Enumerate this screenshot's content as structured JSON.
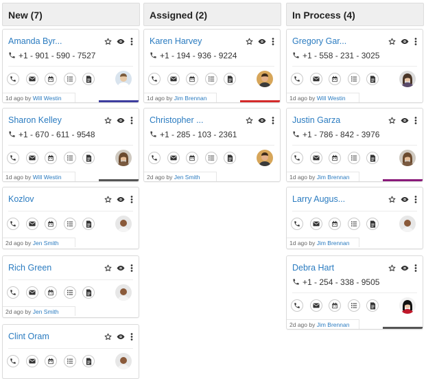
{
  "columns": [
    {
      "title": "New (7)",
      "cards": [
        {
          "name": "Amanda Byr...",
          "phone": "+1 - 901 - 590 - 7527",
          "meta_ago": "1d ago by",
          "meta_user": "Will Westin",
          "accent": "#3d3d9e",
          "avatar": "man-light"
        },
        {
          "name": "Sharon Kelley",
          "phone": "+1 - 670 - 611 - 9548",
          "meta_ago": "1d ago by",
          "meta_user": "Will Westin",
          "accent": "#555555",
          "avatar": "woman-curly"
        },
        {
          "name": "Kozlov",
          "phone": "",
          "meta_ago": "2d ago by",
          "meta_user": "Jen Smith",
          "accent": "",
          "avatar": "man-bald"
        },
        {
          "name": "Rich Green",
          "phone": "",
          "meta_ago": "2d ago by",
          "meta_user": "Jen Smith",
          "accent": "",
          "avatar": "man-bald"
        },
        {
          "name": "Clint Oram",
          "phone": "",
          "meta_ago": "",
          "meta_user": "",
          "accent": "",
          "avatar": "man-bald"
        }
      ]
    },
    {
      "title": "Assigned (2)",
      "cards": [
        {
          "name": "Karen Harvey",
          "phone": "+1 - 194 - 936 - 9224",
          "meta_ago": "1d ago by",
          "meta_user": "Jim Brennan",
          "accent": "#d42a2a",
          "avatar": "man-orange"
        },
        {
          "name": "Christopher ...",
          "phone": "+1 - 285 - 103 - 2361",
          "meta_ago": "2d ago by",
          "meta_user": "Jen Smith",
          "accent": "",
          "avatar": "man-orange"
        }
      ]
    },
    {
      "title": "In Process (4)",
      "cards": [
        {
          "name": "Gregory Gar...",
          "phone": "+1 - 558 - 231 - 3025",
          "meta_ago": "1d ago by",
          "meta_user": "Will Westin",
          "accent": "",
          "avatar": "woman-gray"
        },
        {
          "name": "Justin Garza",
          "phone": "+1 - 786 - 842 - 3976",
          "meta_ago": "1d ago by",
          "meta_user": "Jim Brennan",
          "accent": "#8a1a7a",
          "avatar": "woman-curly"
        },
        {
          "name": "Larry Augus...",
          "phone": "",
          "meta_ago": "1d ago by",
          "meta_user": "Jim Brennan",
          "accent": "",
          "avatar": "man-bald"
        },
        {
          "name": "Debra Hart",
          "phone": "+1 - 254 - 338 - 9505",
          "meta_ago": "2d ago by",
          "meta_user": "Jim Brennan",
          "accent": "#555555",
          "avatar": "woman-dark"
        }
      ]
    }
  ],
  "icons": {
    "top": [
      "star-icon",
      "eye-icon",
      "more-vertical-icon"
    ],
    "actions": [
      "call-icon",
      "email-icon",
      "calendar-icon",
      "task-list-icon",
      "note-icon"
    ],
    "phone": "phone-icon"
  }
}
